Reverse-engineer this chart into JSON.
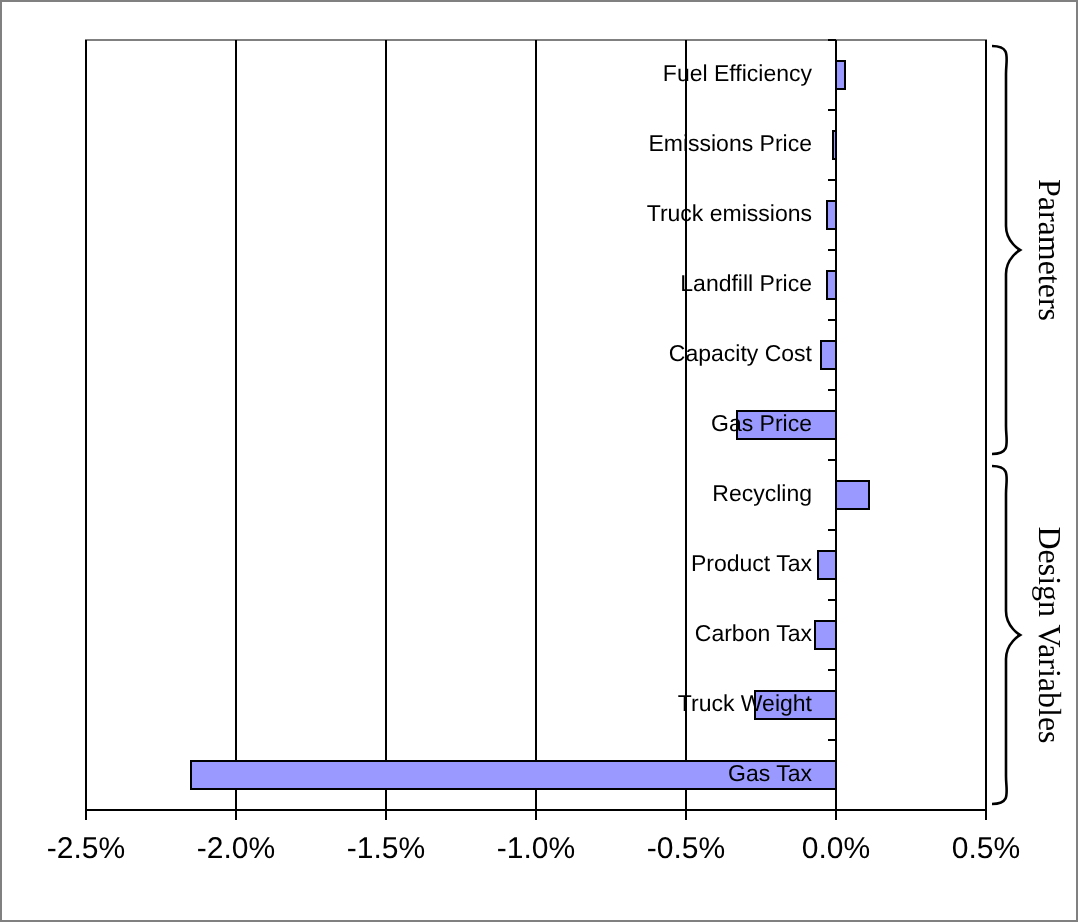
{
  "chart_data": {
    "type": "bar",
    "orientation": "horizontal",
    "categories": [
      "Fuel Efficiency",
      "Emissions Price",
      "Truck emissions",
      "Landfill Price",
      "Capacity Cost",
      "Gas Price",
      "Recycling",
      "Product Tax",
      "Carbon Tax",
      "Truck Weight",
      "Gas Tax"
    ],
    "values": [
      0.03,
      -0.01,
      -0.03,
      -0.03,
      -0.05,
      -0.33,
      0.11,
      -0.06,
      -0.07,
      -0.27,
      -2.15
    ],
    "color": "#9999ff",
    "xlim": [
      -2.5,
      0.5
    ],
    "xticks": [
      {
        "value": -2.5,
        "label": "-2.5%"
      },
      {
        "value": -2.0,
        "label": "-2.0%"
      },
      {
        "value": -1.5,
        "label": "-1.5%"
      },
      {
        "value": -1.0,
        "label": "-1.0%"
      },
      {
        "value": -0.5,
        "label": "-0.5%"
      },
      {
        "value": 0,
        "label": "0.0%"
      },
      {
        "value": 0.5,
        "label": "0.5%"
      }
    ],
    "grid": "x",
    "annotations": [
      "Parameters",
      "Design Variables"
    ]
  }
}
